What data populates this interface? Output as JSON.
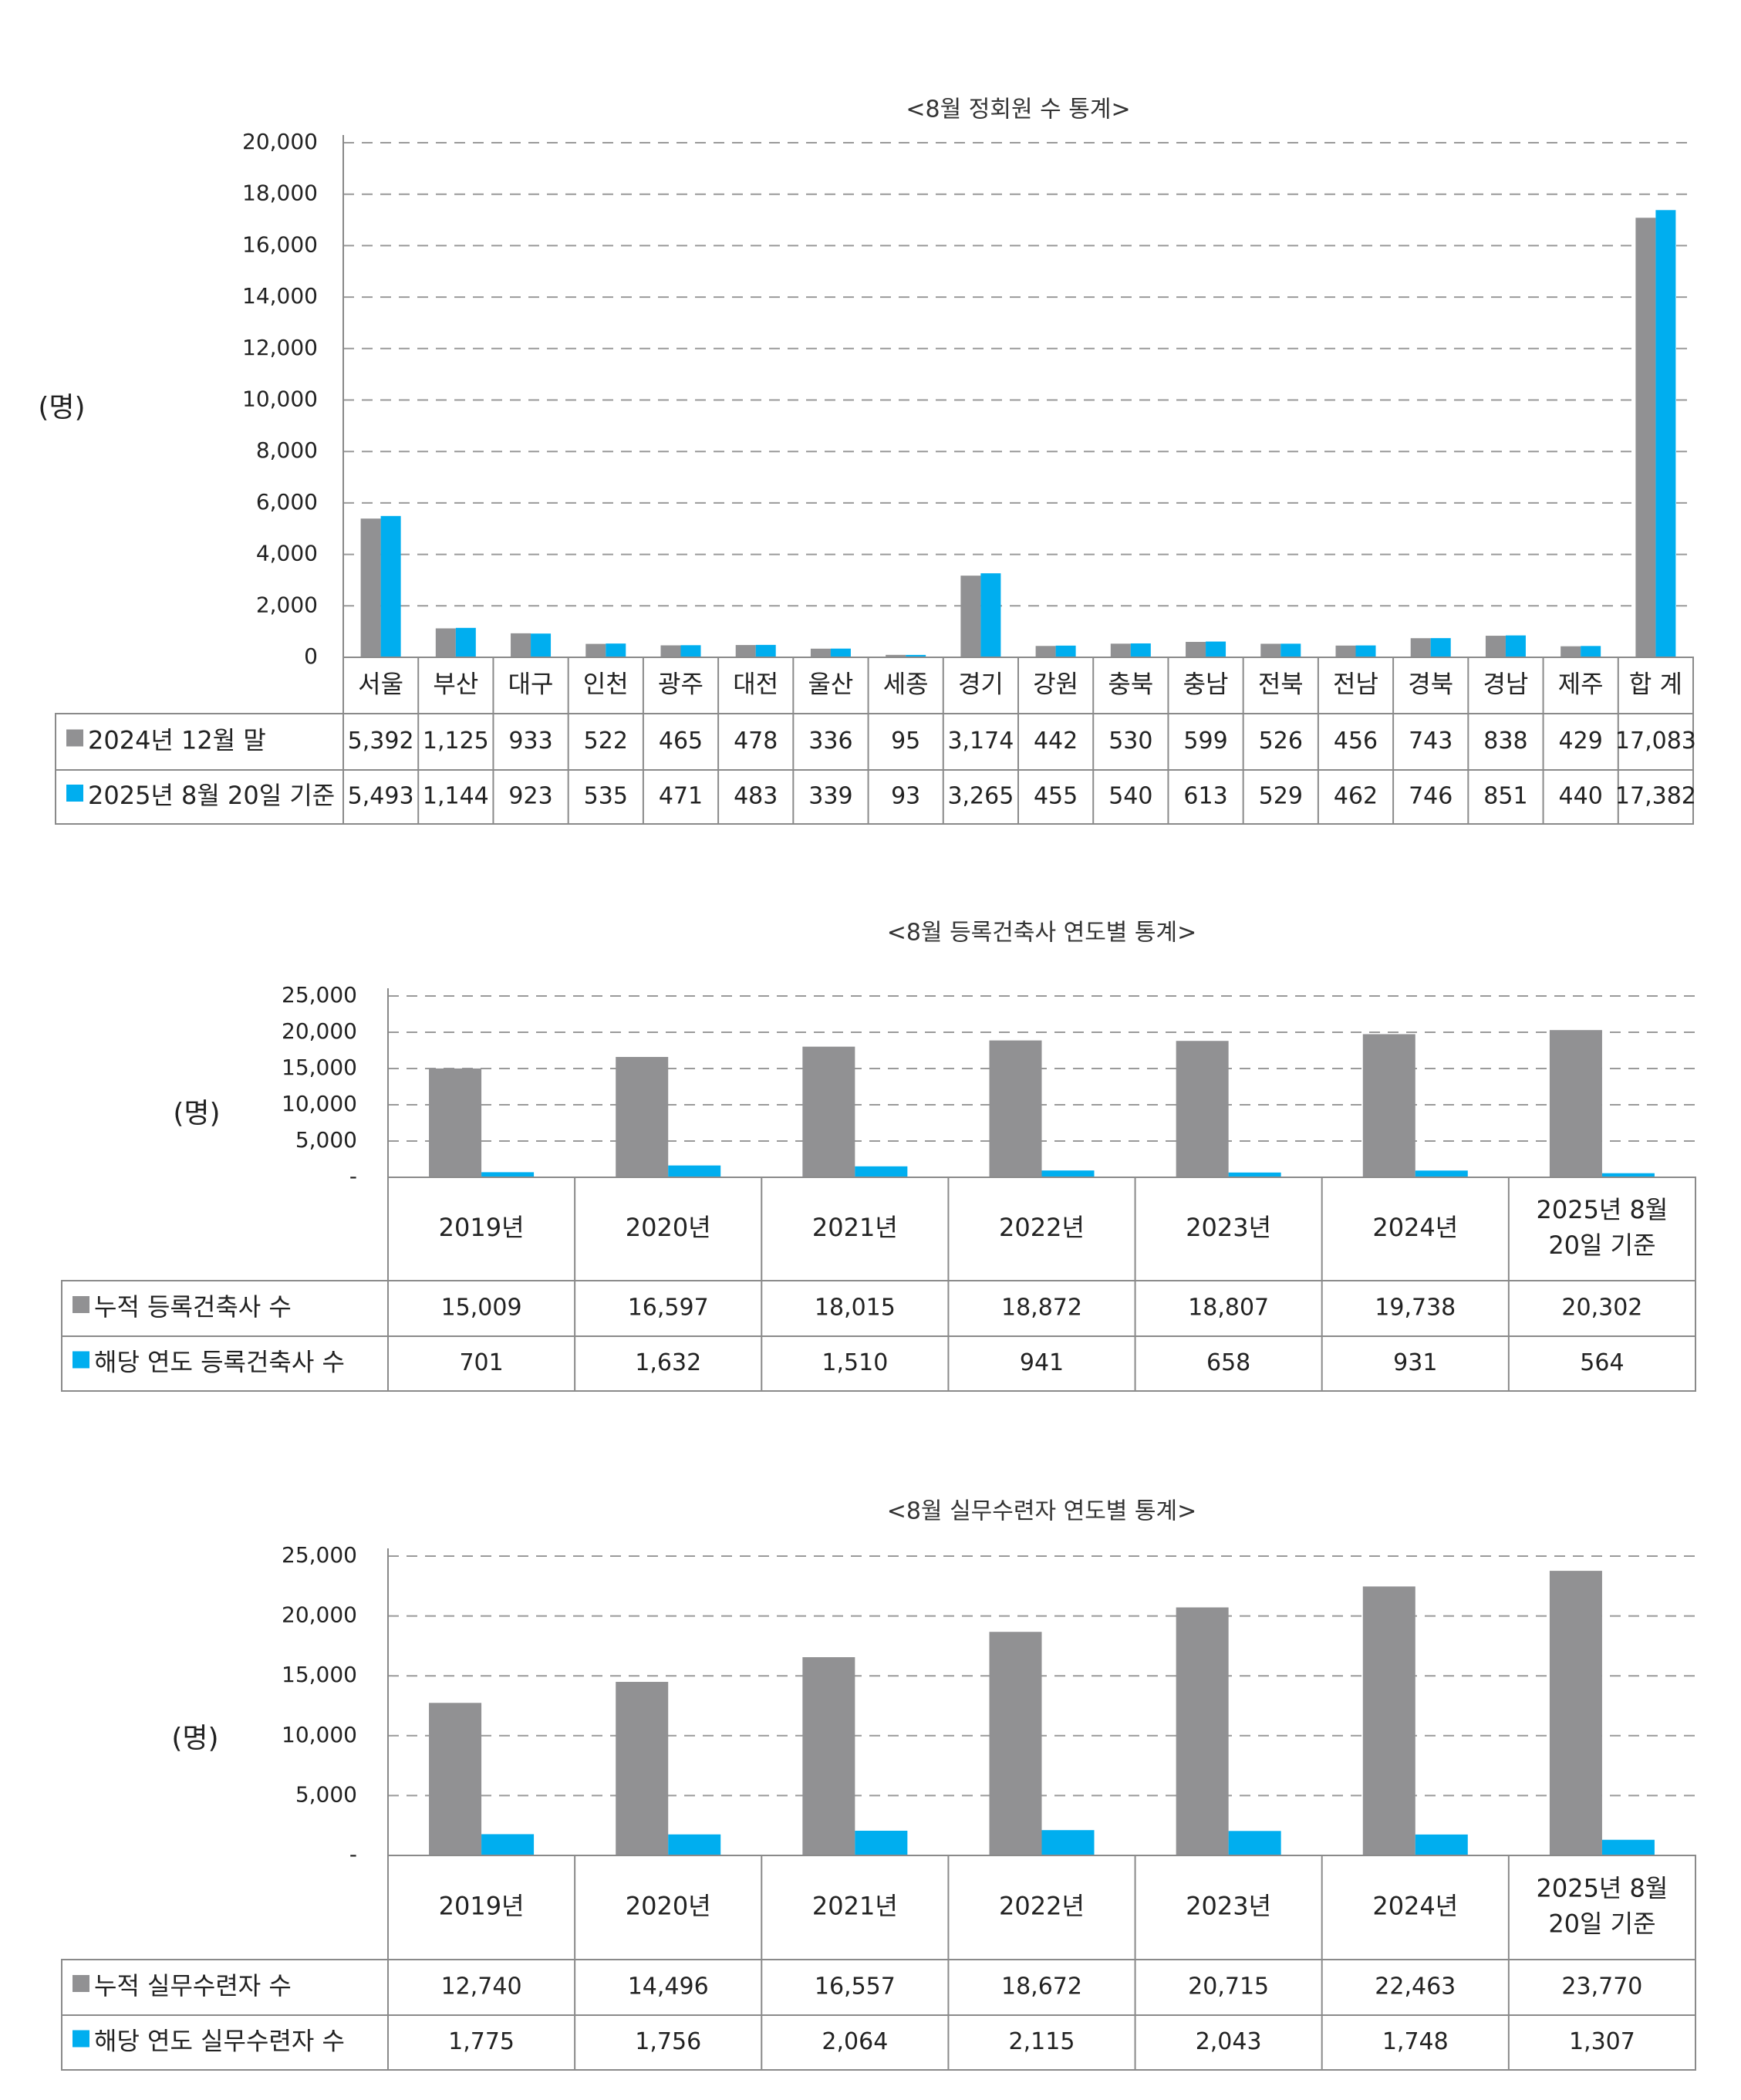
{
  "colors": {
    "series1": "#919193",
    "series2": "#00aeef"
  },
  "unit_label": "(명)",
  "chart_data": [
    {
      "type": "bar",
      "title": "<8월 정회원 수 통계>",
      "ylim": [
        0,
        20000
      ],
      "yticks": [
        "20,000",
        "18,000",
        "16,000",
        "14,000",
        "12,000",
        "10,000",
        "8,000",
        "6,000",
        "4,000",
        "2,000",
        "0"
      ],
      "ytick_values": [
        20000,
        18000,
        16000,
        14000,
        12000,
        10000,
        8000,
        6000,
        4000,
        2000,
        0
      ],
      "grid": true,
      "categories": [
        "서울",
        "부산",
        "대구",
        "인천",
        "광주",
        "대전",
        "울산",
        "세종",
        "경기",
        "강원",
        "충북",
        "충남",
        "전북",
        "전남",
        "경북",
        "경남",
        "제주",
        "합 계"
      ],
      "series": [
        {
          "name": "2024년 12월 말",
          "values": [
            5392,
            1125,
            933,
            522,
            465,
            478,
            336,
            95,
            3174,
            442,
            530,
            599,
            526,
            456,
            743,
            838,
            429,
            17083
          ],
          "labels": [
            "5,392",
            "1,125",
            "933",
            "522",
            "465",
            "478",
            "336",
            "95",
            "3,174",
            "442",
            "530",
            "599",
            "526",
            "456",
            "743",
            "838",
            "429",
            "17,083"
          ]
        },
        {
          "name": "2025년 8월 20일 기준",
          "values": [
            5493,
            1144,
            923,
            535,
            471,
            483,
            339,
            93,
            3265,
            455,
            540,
            613,
            529,
            462,
            746,
            851,
            440,
            17382
          ],
          "labels": [
            "5,493",
            "1,144",
            "923",
            "535",
            "471",
            "483",
            "339",
            "93",
            "3,265",
            "455",
            "540",
            "613",
            "529",
            "462",
            "746",
            "851",
            "440",
            "17,382"
          ]
        }
      ]
    },
    {
      "type": "bar",
      "title": "<8월 등록건축사 연도별 통계>",
      "ylim": [
        0,
        25000
      ],
      "yticks": [
        "25,000",
        "20,000",
        "15,000",
        "10,000",
        "5,000",
        "-"
      ],
      "ytick_values": [
        25000,
        20000,
        15000,
        10000,
        5000,
        0
      ],
      "grid": true,
      "categories": [
        "2019년",
        "2020년",
        "2021년",
        "2022년",
        "2023년",
        "2024년",
        "2025년 8월 20일 기준"
      ],
      "category_lines": [
        [
          "2019년"
        ],
        [
          "2020년"
        ],
        [
          "2021년"
        ],
        [
          "2022년"
        ],
        [
          "2023년"
        ],
        [
          "2024년"
        ],
        [
          "2025년 8월",
          "20일 기준"
        ]
      ],
      "series": [
        {
          "name": "누적 등록건축사 수",
          "values": [
            15009,
            16597,
            18015,
            18872,
            18807,
            19738,
            20302
          ],
          "labels": [
            "15,009",
            "16,597",
            "18,015",
            "18,872",
            "18,807",
            "19,738",
            "20,302"
          ]
        },
        {
          "name": "해당 연도 등록건축사 수",
          "values": [
            701,
            1632,
            1510,
            941,
            658,
            931,
            564
          ],
          "labels": [
            "701",
            "1,632",
            "1,510",
            "941",
            "658",
            "931",
            "564"
          ]
        }
      ]
    },
    {
      "type": "bar",
      "title": "<8월 실무수련자 연도별 통계>",
      "ylim": [
        0,
        25000
      ],
      "yticks": [
        "25,000",
        "20,000",
        "15,000",
        "10,000",
        "5,000",
        "-"
      ],
      "ytick_values": [
        25000,
        20000,
        15000,
        10000,
        5000,
        0
      ],
      "grid": true,
      "categories": [
        "2019년",
        "2020년",
        "2021년",
        "2022년",
        "2023년",
        "2024년",
        "2025년 8월 20일 기준"
      ],
      "category_lines": [
        [
          "2019년"
        ],
        [
          "2020년"
        ],
        [
          "2021년"
        ],
        [
          "2022년"
        ],
        [
          "2023년"
        ],
        [
          "2024년"
        ],
        [
          "2025년 8월",
          "20일 기준"
        ]
      ],
      "series": [
        {
          "name": "누적 실무수련자 수",
          "values": [
            12740,
            14496,
            16557,
            18672,
            20715,
            22463,
            23770
          ],
          "labels": [
            "12,740",
            "14,496",
            "16,557",
            "18,672",
            "20,715",
            "22,463",
            "23,770"
          ]
        },
        {
          "name": "해당 연도 실무수련자 수",
          "values": [
            1775,
            1756,
            2064,
            2115,
            2043,
            1748,
            1307
          ],
          "labels": [
            "1,775",
            "1,756",
            "2,064",
            "2,115",
            "2,043",
            "1,748",
            "1,307"
          ]
        }
      ]
    }
  ]
}
